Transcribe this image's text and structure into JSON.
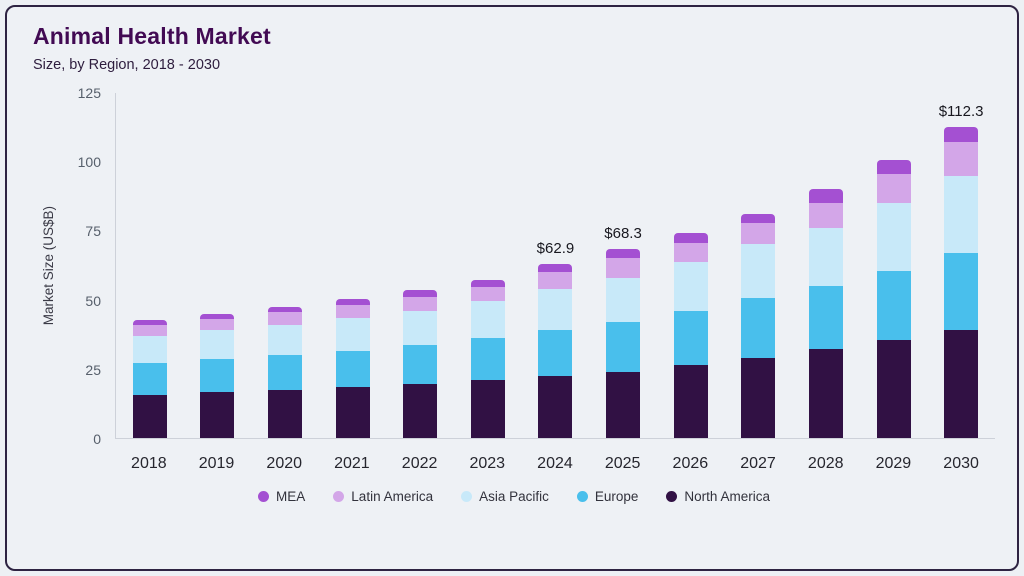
{
  "chart_data": {
    "type": "bar",
    "stacked": true,
    "title": "Animal Health Market",
    "subtitle": "Size, by Region, 2018 - 2030",
    "xlabel": "",
    "ylabel": "Market Size (US$B)",
    "ylim": [
      0,
      125
    ],
    "yticks": [
      0,
      25,
      50,
      75,
      100,
      125
    ],
    "grid": false,
    "legend_position": "bottom",
    "categories": [
      "2018",
      "2019",
      "2020",
      "2021",
      "2022",
      "2023",
      "2024",
      "2025",
      "2026",
      "2027",
      "2028",
      "2029",
      "2030"
    ],
    "series": [
      {
        "name": "North America",
        "color": "#311144",
        "values": [
          15.5,
          16.5,
          17.5,
          18.5,
          19.5,
          21.0,
          22.5,
          24.0,
          26.5,
          29.0,
          32.0,
          35.5,
          39.0
        ]
      },
      {
        "name": "Europe",
        "color": "#49bfec",
        "values": [
          11.5,
          12.0,
          12.5,
          13.0,
          14.0,
          15.0,
          16.5,
          18.0,
          19.5,
          21.5,
          23.0,
          25.0,
          28.0
        ]
      },
      {
        "name": "Asia Pacific",
        "color": "#c8e9f9",
        "values": [
          10.0,
          10.5,
          11.0,
          12.0,
          12.5,
          13.5,
          15.0,
          16.0,
          17.5,
          19.5,
          21.0,
          24.5,
          27.5
        ]
      },
      {
        "name": "Latin America",
        "color": "#d3a6e8",
        "values": [
          4.0,
          4.0,
          4.5,
          4.7,
          5.0,
          5.0,
          6.0,
          7.0,
          7.0,
          7.5,
          9.0,
          10.5,
          12.5
        ]
      },
      {
        "name": "MEA",
        "color": "#a450d2",
        "values": [
          1.5,
          1.8,
          2.0,
          2.0,
          2.5,
          2.5,
          2.9,
          3.3,
          3.5,
          3.5,
          5.0,
          5.0,
          5.3
        ]
      }
    ],
    "annotations": [
      {
        "category": "2024",
        "text": "$62.9"
      },
      {
        "category": "2025",
        "text": "$68.3"
      },
      {
        "category": "2030",
        "text": "$112.3"
      }
    ],
    "legend": [
      {
        "label": "MEA",
        "color": "#a450d2"
      },
      {
        "label": "Latin America",
        "color": "#d3a6e8"
      },
      {
        "label": "Asia Pacific",
        "color": "#c8e9f9"
      },
      {
        "label": "Europe",
        "color": "#49bfec"
      },
      {
        "label": "North America",
        "color": "#311144"
      }
    ]
  }
}
